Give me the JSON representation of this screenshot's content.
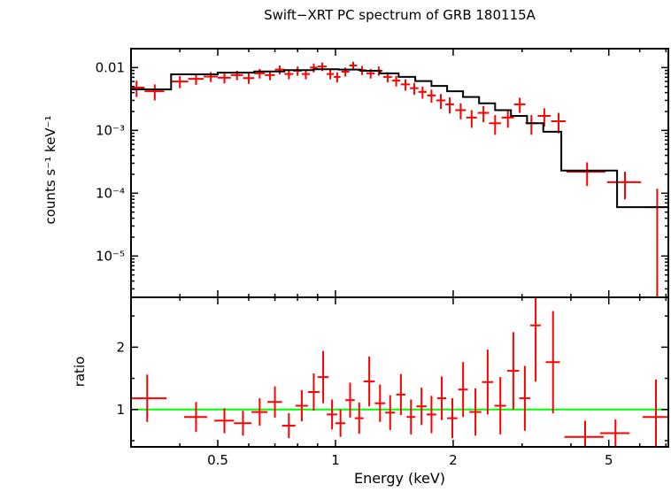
{
  "title": "Swift−XRT PC spectrum of GRB 180115A",
  "colors": {
    "data": "#ff0000",
    "model": "#000000",
    "reference": "#00ff00",
    "frame": "#000000",
    "background": "#ffffff"
  },
  "chart_data": {
    "type": "scatter",
    "title": "Swift−XRT PC spectrum of GRB 180115A",
    "xlabel": "Energy (keV)",
    "xscale": "log",
    "xlim": [
      0.3,
      7.1
    ],
    "x_major_ticks": [
      0.5,
      1,
      2,
      5
    ],
    "x_major_tick_labels": [
      "0.5",
      "1",
      "2",
      "5"
    ],
    "grid": false,
    "legend": false,
    "panels": [
      {
        "name": "spectrum",
        "ylabel": "counts s⁻¹ keV⁻¹",
        "yscale": "log",
        "ylim": [
          2.2e-06,
          0.02
        ],
        "y_major_ticks": [
          0.01,
          0.001,
          0.0001,
          1e-05
        ],
        "y_major_tick_labels": [
          "0.01",
          "10⁻³",
          "10⁻⁴",
          "10⁻⁵"
        ],
        "series": [
          {
            "name": "observed-counts",
            "style": "errorbar-cross",
            "color": "#ff0000",
            "points": [
              [
                0.31,
                0.015,
                0.0048,
                0.0014
              ],
              [
                0.345,
                0.02,
                0.0042,
                0.0012
              ],
              [
                0.4,
                0.02,
                0.006,
                0.0013
              ],
              [
                0.44,
                0.02,
                0.0066,
                0.0013
              ],
              [
                0.48,
                0.02,
                0.0072,
                0.0013
              ],
              [
                0.52,
                0.02,
                0.0069,
                0.0013
              ],
              [
                0.56,
                0.02,
                0.0076,
                0.0013
              ],
              [
                0.6,
                0.02,
                0.0068,
                0.0013
              ],
              [
                0.64,
                0.02,
                0.0081,
                0.0014
              ],
              [
                0.68,
                0.02,
                0.0076,
                0.0013
              ],
              [
                0.72,
                0.02,
                0.0093,
                0.0015
              ],
              [
                0.76,
                0.02,
                0.0079,
                0.0014
              ],
              [
                0.8,
                0.02,
                0.0089,
                0.0015
              ],
              [
                0.84,
                0.02,
                0.0079,
                0.0014
              ],
              [
                0.88,
                0.02,
                0.01,
                0.0016
              ],
              [
                0.925,
                0.025,
                0.0104,
                0.0016
              ],
              [
                0.97,
                0.02,
                0.0079,
                0.0014
              ],
              [
                1.01,
                0.02,
                0.0071,
                0.0013
              ],
              [
                1.06,
                0.025,
                0.0086,
                0.0014
              ],
              [
                1.11,
                0.025,
                0.0108,
                0.0016
              ],
              [
                1.17,
                0.03,
                0.0091,
                0.0015
              ],
              [
                1.23,
                0.03,
                0.0081,
                0.0014
              ],
              [
                1.29,
                0.03,
                0.0089,
                0.0015
              ],
              [
                1.36,
                0.035,
                0.0071,
                0.0013
              ],
              [
                1.43,
                0.035,
                0.0062,
                0.0012
              ],
              [
                1.51,
                0.04,
                0.0054,
                0.0011
              ],
              [
                1.59,
                0.04,
                0.0047,
                0.001
              ],
              [
                1.67,
                0.04,
                0.0041,
                0.0009
              ],
              [
                1.76,
                0.045,
                0.0036,
                0.00085
              ],
              [
                1.86,
                0.05,
                0.003,
                0.0008
              ],
              [
                1.96,
                0.05,
                0.0026,
                0.00075
              ],
              [
                2.09,
                0.065,
                0.0021,
                0.0006
              ],
              [
                2.23,
                0.07,
                0.0016,
                0.0005
              ],
              [
                2.39,
                0.08,
                0.0019,
                0.00055
              ],
              [
                2.56,
                0.09,
                0.0013,
                0.00045
              ],
              [
                2.76,
                0.1,
                0.0016,
                0.0005
              ],
              [
                2.96,
                0.1,
                0.0026,
                0.0007
              ],
              [
                3.17,
                0.11,
                0.0013,
                0.00045
              ],
              [
                3.42,
                0.13,
                0.0017,
                0.00055
              ],
              [
                3.72,
                0.16,
                0.0014,
                0.0005
              ],
              [
                4.4,
                0.5,
                0.00022,
                9e-05
              ],
              [
                5.5,
                0.55,
                0.00015,
                7e-05
              ],
              [
                6.65,
                0.45,
                6e-05,
                5.8e-05
              ]
            ]
          },
          {
            "name": "model-fit",
            "style": "step-line",
            "color": "#000000",
            "steps": [
              [
                0.3,
                0.38,
                0.0045
              ],
              [
                0.38,
                0.5,
                0.0078
              ],
              [
                0.5,
                0.62,
                0.0083
              ],
              [
                0.62,
                0.74,
                0.0087
              ],
              [
                0.74,
                0.88,
                0.0091
              ],
              [
                0.88,
                1.02,
                0.0094
              ],
              [
                1.02,
                1.16,
                0.0093
              ],
              [
                1.16,
                1.3,
                0.0089
              ],
              [
                1.3,
                1.45,
                0.0081
              ],
              [
                1.45,
                1.6,
                0.0071
              ],
              [
                1.6,
                1.76,
                0.0061
              ],
              [
                1.76,
                1.93,
                0.0051
              ],
              [
                1.93,
                2.12,
                0.0042
              ],
              [
                2.12,
                2.33,
                0.0034
              ],
              [
                2.33,
                2.56,
                0.0027
              ],
              [
                2.56,
                2.81,
                0.0021
              ],
              [
                2.81,
                3.09,
                0.0017
              ],
              [
                3.09,
                3.4,
                0.0013
              ],
              [
                3.4,
                3.78,
                0.00095
              ],
              [
                3.78,
                5.25,
                0.00023
              ],
              [
                5.25,
                7.1,
                6e-05
              ]
            ]
          }
        ]
      },
      {
        "name": "ratio",
        "ylabel": "ratio",
        "yscale": "linear",
        "ylim": [
          0.4,
          2.8
        ],
        "y_major_ticks": [
          1,
          2
        ],
        "y_major_tick_labels": [
          "1",
          "2"
        ],
        "y_minor_ticks": [
          0.5,
          1.5,
          2.5
        ],
        "reference_line": {
          "y": 1,
          "color": "#00ff00"
        },
        "series": [
          {
            "name": "data-to-model-ratio",
            "style": "errorbar-cross",
            "color": "#ff0000",
            "points": [
              [
                0.33,
                0.04,
                1.18,
                0.38
              ],
              [
                0.44,
                0.03,
                0.88,
                0.24
              ],
              [
                0.52,
                0.03,
                0.82,
                0.2
              ],
              [
                0.58,
                0.03,
                0.78,
                0.2
              ],
              [
                0.64,
                0.03,
                0.96,
                0.22
              ],
              [
                0.7,
                0.03,
                1.12,
                0.25
              ],
              [
                0.76,
                0.03,
                0.74,
                0.2
              ],
              [
                0.82,
                0.03,
                1.06,
                0.25
              ],
              [
                0.88,
                0.03,
                1.28,
                0.3
              ],
              [
                0.93,
                0.03,
                1.52,
                0.42
              ],
              [
                0.98,
                0.03,
                0.92,
                0.24
              ],
              [
                1.03,
                0.03,
                0.78,
                0.22
              ],
              [
                1.09,
                0.03,
                1.15,
                0.28
              ],
              [
                1.15,
                0.03,
                0.86,
                0.25
              ],
              [
                1.22,
                0.04,
                1.45,
                0.4
              ],
              [
                1.3,
                0.04,
                1.1,
                0.3
              ],
              [
                1.38,
                0.04,
                0.95,
                0.28
              ],
              [
                1.47,
                0.04,
                1.24,
                0.33
              ],
              [
                1.56,
                0.04,
                0.88,
                0.28
              ],
              [
                1.66,
                0.05,
                1.05,
                0.3
              ],
              [
                1.76,
                0.05,
                0.92,
                0.3
              ],
              [
                1.87,
                0.05,
                1.18,
                0.35
              ],
              [
                1.99,
                0.06,
                0.86,
                0.32
              ],
              [
                2.12,
                0.06,
                1.32,
                0.44
              ],
              [
                2.28,
                0.08,
                0.96,
                0.38
              ],
              [
                2.45,
                0.08,
                1.44,
                0.52
              ],
              [
                2.64,
                0.09,
                1.06,
                0.46
              ],
              [
                2.85,
                0.1,
                1.62,
                0.62
              ],
              [
                3.05,
                0.1,
                1.18,
                0.52
              ],
              [
                3.25,
                0.1,
                2.35,
                0.9
              ],
              [
                3.6,
                0.15,
                1.76,
                0.82
              ],
              [
                4.35,
                0.5,
                0.56,
                0.26
              ],
              [
                5.2,
                0.45,
                0.62,
                0.22
              ],
              [
                6.6,
                0.5,
                0.88,
                0.6
              ]
            ]
          }
        ]
      }
    ]
  }
}
